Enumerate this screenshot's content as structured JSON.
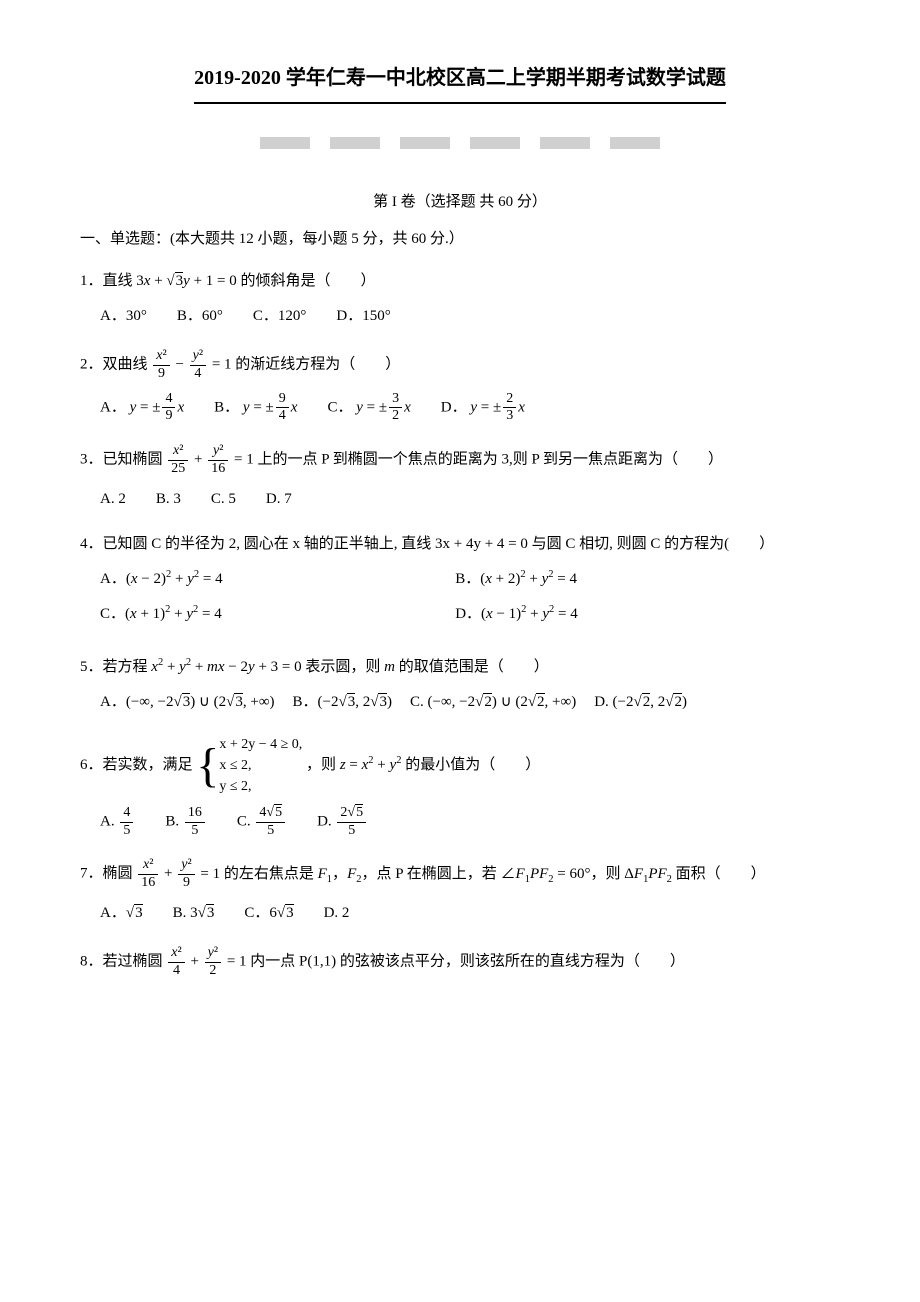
{
  "title": "2019-2020 学年仁寿一中北校区高二上学期半期考试数学试题",
  "section1_header": "第 I 卷（选择题  共 60 分）",
  "subsection1": "一、单选题：(本大题共 12 小题，每小题 5 分，共 60 分.）",
  "q1": {
    "text_prefix": "1．直线",
    "eq": "3x + √3y + 1 = 0",
    "text_suffix": "的倾斜角是（　　）",
    "opts": [
      "A．30°",
      "B．60°",
      "C．120°",
      "D．150°"
    ]
  },
  "q2": {
    "text_prefix": "2．双曲线",
    "text_suffix": "= 1 的渐近线方程为（　　）",
    "a_label": "A．",
    "b_label": "B．",
    "c_label": "C．",
    "d_label": "D．"
  },
  "q3": {
    "text_prefix": "3．已知椭圆",
    "text_suffix": "= 1 上的一点 P 到椭圆一个焦点的距离为 3,则 P 到另一焦点距离为（　　）",
    "opts": [
      "A. 2",
      "B. 3",
      "C. 5",
      "D. 7"
    ]
  },
  "q4": {
    "text": "4．已知圆 C 的半径为 2, 圆心在 x 轴的正半轴上, 直线 3x + 4y + 4 = 0 与圆 C 相切, 则圆 C 的方程为(　　）",
    "opts": {
      "a": "A．(x − 2)² + y² = 4",
      "b": "B．(x + 2)² + y² = 4",
      "c": "C．(x + 1)² + y² = 4",
      "d": "D．(x − 1)² + y² = 4"
    }
  },
  "q5": {
    "text": "5．若方程 x² + y² + mx − 2y + 3 = 0 表示圆，则 m 的取值范围是（　　）",
    "a": "A．(−∞, −2√3) ∪ (2√3, +∞)",
    "b": "B．(−2√3, 2√3)",
    "c": "C. (−∞, −2√2) ∪ (2√2, +∞)",
    "d": "D. (−2√2, 2√2)"
  },
  "q6": {
    "text_prefix": "6．若实数，满足",
    "sys1": "x + 2y − 4 ≥ 0,",
    "sys2": "x ≤ 2,",
    "sys3": "y ≤ 2,",
    "text_suffix": "，则 z = x² + y² 的最小值为（　　）",
    "a_label": "A.",
    "b_label": "B.",
    "c_label": "C.",
    "d_label": "D."
  },
  "q7": {
    "text_prefix": "7．椭圆",
    "text_mid": "= 1 的左右焦点是 F₁，F₂，点 P 在椭圆上，若 ∠F₁PF₂ = 60°，则 ΔF₁PF₂ 面积（　　）",
    "a": "A．√3",
    "b": "B. 3√3",
    "c": "C．6√3",
    "d": "D. 2"
  },
  "q8": {
    "text_prefix": "8．若过椭圆",
    "text_suffix": "= 1 内一点 P(1,1) 的弦被该点平分，则该弦所在的直线方程为（　　）"
  }
}
